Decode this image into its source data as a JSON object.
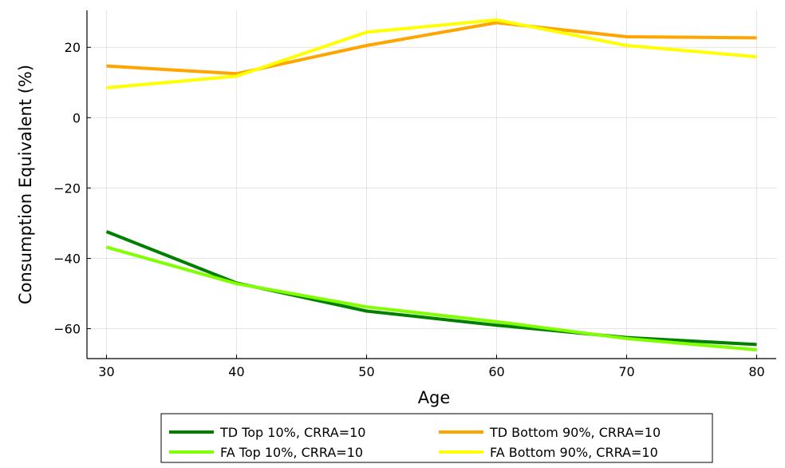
{
  "chart_data": {
    "type": "line",
    "title": "",
    "xlabel": "Age",
    "ylabel": "Consumption Equivalent (%)",
    "xlim": [
      28.5,
      81.5
    ],
    "ylim": [
      -68.5,
      30.5
    ],
    "x": [
      30,
      40,
      50,
      60,
      70,
      80
    ],
    "xticks": [
      30,
      40,
      50,
      60,
      70,
      80
    ],
    "yticks": [
      -60,
      -40,
      -20,
      0,
      20
    ],
    "ytick_labels": [
      "−60",
      "−40",
      "−20",
      "0",
      "20"
    ],
    "grid": true,
    "legend_position": "bottom",
    "series": [
      {
        "name": "TD Top 10%, CRRA=10",
        "color": "#008000",
        "values": [
          -32.4,
          -47.0,
          -55.0,
          -59.0,
          -62.5,
          -64.5
        ]
      },
      {
        "name": "FA Top 10%, CRRA=10",
        "color": "#7FFF00",
        "values": [
          -36.8,
          -47.2,
          -53.8,
          -58.0,
          -62.8,
          -66.0
        ]
      },
      {
        "name": "TD Bottom 90%, CRRA=10",
        "color": "#FFA500",
        "values": [
          14.7,
          12.5,
          20.5,
          27.0,
          23.0,
          22.7
        ]
      },
      {
        "name": "FA Bottom 90%, CRRA=10",
        "color": "#FFFF00",
        "values": [
          8.5,
          11.8,
          24.3,
          27.8,
          20.5,
          17.3
        ]
      }
    ],
    "legend_order": [
      0,
      2,
      1,
      3
    ]
  }
}
